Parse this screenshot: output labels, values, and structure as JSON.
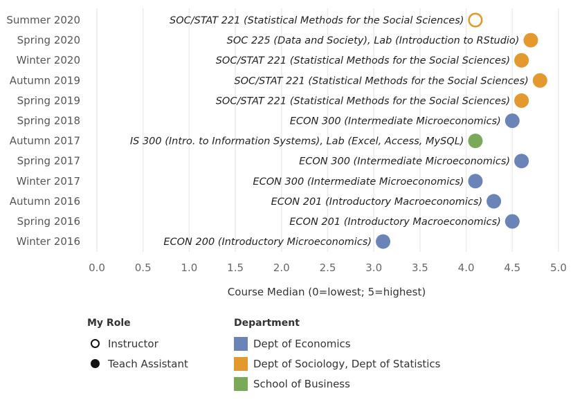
{
  "chart_data": {
    "type": "scatter",
    "xlabel": "Course Median (0=lowest; 5=highest)",
    "xlim": [
      0,
      5
    ],
    "xticks": [
      "0.0",
      "0.5",
      "1.0",
      "1.5",
      "2.0",
      "2.5",
      "3.0",
      "3.5",
      "4.0",
      "4.5",
      "5.0"
    ],
    "grid": true,
    "rows": [
      {
        "term": "Summer 2020",
        "course": "SOC/STAT 221 (Statistical Methods for the Social Sciences)",
        "value": 4.1,
        "department": "Dept of Sociology, Dept of Statistics",
        "role": "Instructor"
      },
      {
        "term": "Spring 2020",
        "course": "SOC 225 (Data and Society), Lab (Introduction to RStudio)",
        "value": 4.7,
        "department": "Dept of Sociology, Dept of Statistics",
        "role": "Teach Assistant"
      },
      {
        "term": "Winter 2020",
        "course": "SOC/STAT 221 (Statistical Methods for the Social Sciences)",
        "value": 4.6,
        "department": "Dept of Sociology, Dept of Statistics",
        "role": "Teach Assistant"
      },
      {
        "term": "Autumn 2019",
        "course": "SOC/STAT 221 (Statistical Methods for the Social Sciences)",
        "value": 4.8,
        "department": "Dept of Sociology, Dept of Statistics",
        "role": "Teach Assistant"
      },
      {
        "term": "Spring 2019",
        "course": "SOC/STAT 221 (Statistical Methods for the Social Sciences)",
        "value": 4.6,
        "department": "Dept of Sociology, Dept of Statistics",
        "role": "Teach Assistant"
      },
      {
        "term": "Spring 2018",
        "course": "ECON 300 (Intermediate Microeconomics)",
        "value": 4.5,
        "department": "Dept of Economics",
        "role": "Teach Assistant"
      },
      {
        "term": "Autumn 2017",
        "course": "IS 300 (Intro. to Information Systems), Lab (Excel, Access, MySQL)",
        "value": 4.1,
        "department": "School of Business",
        "role": "Teach Assistant"
      },
      {
        "term": "Spring 2017",
        "course": "ECON 300 (Intermediate Microeconomics)",
        "value": 4.6,
        "department": "Dept of Economics",
        "role": "Teach Assistant"
      },
      {
        "term": "Winter 2017",
        "course": "ECON 300 (Intermediate Microeconomics)",
        "value": 4.1,
        "department": "Dept of Economics",
        "role": "Teach Assistant"
      },
      {
        "term": "Autumn 2016",
        "course": "ECON 201 (Introductory Macroeconomics)",
        "value": 4.3,
        "department": "Dept of Economics",
        "role": "Teach Assistant"
      },
      {
        "term": "Spring 2016",
        "course": "ECON 201 (Introductory Macroeconomics)",
        "value": 4.5,
        "department": "Dept of Economics",
        "role": "Teach Assistant"
      },
      {
        "term": "Winter 2016",
        "course": "ECON 200 (Introductory Microeconomics)",
        "value": 3.1,
        "department": "Dept of Economics",
        "role": "Teach Assistant"
      }
    ]
  },
  "legend": {
    "role": {
      "title": "My Role",
      "items": [
        {
          "label": "Instructor",
          "style": "hollow"
        },
        {
          "label": "Teach Assistant",
          "style": "filled"
        }
      ]
    },
    "department": {
      "title": "Department",
      "items": [
        {
          "label": "Dept of Economics",
          "color": "#6b84b7"
        },
        {
          "label": "Dept of Sociology, Dept of Statistics",
          "color": "#e3992d"
        },
        {
          "label": "School of Business",
          "color": "#7aa95a"
        }
      ]
    }
  }
}
